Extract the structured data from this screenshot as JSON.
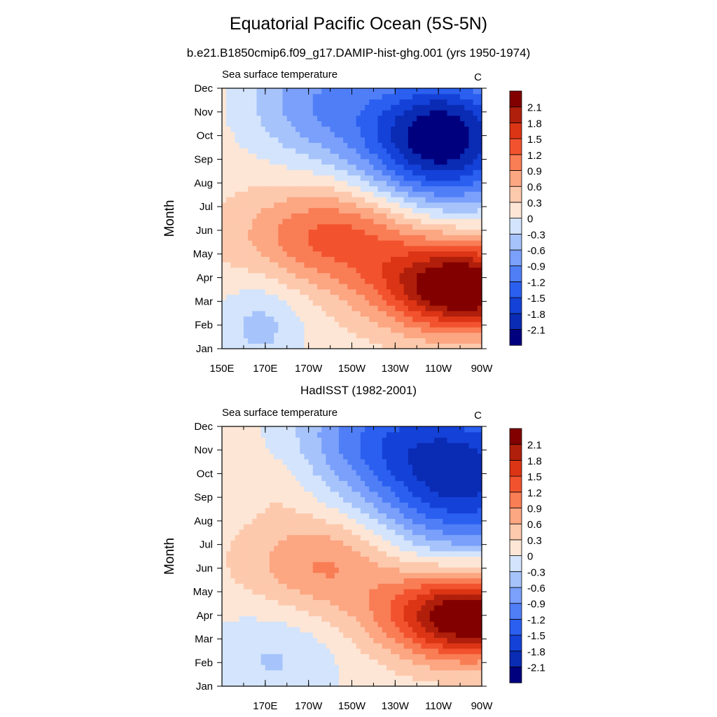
{
  "title": "Equatorial Pacific Ocean (5S-5N)",
  "subtitles": [
    "b.e21.B1850cmip6.f09_g17.DAMIP-hist-ghg.001 (yrs 1950-1974)",
    "HadISST (1982-2001)"
  ],
  "chart_data": [
    {
      "type": "heatmap",
      "title": "b.e21.B1850cmip6.f09_g17.DAMIP-hist-ghg.001 (yrs 1950-1974)",
      "left_label": "Sea surface temperature",
      "units": "C",
      "xlabel": "",
      "ylabel": "Month",
      "x_ticks": [
        "150E",
        "170E",
        "170W",
        "150W",
        "130W",
        "110W",
        "90W"
      ],
      "x_range": [
        150,
        270
      ],
      "y_ticks": [
        "Jan",
        "Feb",
        "Mar",
        "Apr",
        "May",
        "Jun",
        "Jul",
        "Aug",
        "Sep",
        "Oct",
        "Nov",
        "Dec"
      ],
      "levels": [
        -2.1,
        -1.8,
        -1.5,
        -1.2,
        -0.9,
        -0.6,
        -0.3,
        0,
        0.3,
        0.6,
        0.9,
        1.2,
        1.5,
        1.8,
        2.1
      ],
      "colors": [
        "#00007f",
        "#0a2bb4",
        "#1442d8",
        "#2a5ff0",
        "#4f7ef7",
        "#7aa0fb",
        "#a6c3fb",
        "#d3e4fc",
        "#fde6d6",
        "#fdc9ad",
        "#fca682",
        "#f97d55",
        "#f2532e",
        "#dc3515",
        "#b01f0b",
        "#820000"
      ],
      "field": "model"
    },
    {
      "type": "heatmap",
      "title": "HadISST (1982-2001)",
      "left_label": "Sea surface temperature",
      "units": "C",
      "xlabel": "",
      "ylabel": "Month",
      "x_ticks": [
        "170E",
        "170W",
        "150W",
        "130W",
        "110W",
        "90W"
      ],
      "x_range": [
        150,
        270
      ],
      "y_ticks": [
        "Jan",
        "Feb",
        "Mar",
        "Apr",
        "May",
        "Jun",
        "Jul",
        "Aug",
        "Sep",
        "Oct",
        "Nov",
        "Dec"
      ],
      "levels": [
        -2.1,
        -1.8,
        -1.5,
        -1.2,
        -0.9,
        -0.6,
        -0.3,
        0,
        0.3,
        0.6,
        0.9,
        1.2,
        1.5,
        1.8,
        2.1
      ],
      "colors": [
        "#00007f",
        "#0a2bb4",
        "#1442d8",
        "#2a5ff0",
        "#4f7ef7",
        "#7aa0fb",
        "#a6c3fb",
        "#d3e4fc",
        "#fde6d6",
        "#fdc9ad",
        "#fca682",
        "#f97d55",
        "#f2532e",
        "#dc3515",
        "#b01f0b",
        "#820000"
      ],
      "field": "obs"
    }
  ]
}
